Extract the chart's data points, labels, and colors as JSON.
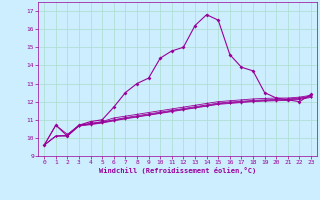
{
  "xlabel": "Windchill (Refroidissement éolien,°C)",
  "bg_color": "#cceeff",
  "grid_color": "#aaddcc",
  "line_color": "#990099",
  "xlim": [
    -0.5,
    23.5
  ],
  "ylim": [
    9,
    17.5
  ],
  "yticks": [
    9,
    10,
    11,
    12,
    13,
    14,
    15,
    16,
    17
  ],
  "xticks": [
    0,
    1,
    2,
    3,
    4,
    5,
    6,
    7,
    8,
    9,
    10,
    11,
    12,
    13,
    14,
    15,
    16,
    17,
    18,
    19,
    20,
    21,
    22,
    23
  ],
  "line1_x": [
    0,
    1,
    2,
    3,
    4,
    5,
    6,
    7,
    8,
    9,
    10,
    11,
    12,
    13,
    14,
    15,
    16,
    17,
    18,
    19,
    20,
    21,
    22,
    23
  ],
  "line1_y": [
    9.6,
    10.7,
    10.1,
    10.7,
    10.9,
    11.0,
    11.7,
    12.5,
    13.0,
    13.3,
    14.4,
    14.8,
    15.0,
    16.2,
    16.8,
    16.5,
    14.6,
    13.9,
    13.7,
    12.5,
    12.2,
    12.1,
    12.0,
    12.4
  ],
  "line2_x": [
    0,
    1,
    2,
    3,
    4,
    5,
    6,
    7,
    8,
    9,
    10,
    11,
    12,
    13,
    14,
    15,
    16,
    17,
    18,
    19,
    20,
    21,
    22,
    23
  ],
  "line2_y": [
    9.6,
    10.7,
    10.2,
    10.7,
    10.8,
    10.9,
    11.1,
    11.2,
    11.3,
    11.4,
    11.5,
    11.6,
    11.7,
    11.8,
    11.9,
    12.0,
    12.05,
    12.1,
    12.15,
    12.18,
    12.2,
    12.2,
    12.25,
    12.35
  ],
  "line3_x": [
    0,
    1,
    2,
    3,
    4,
    5,
    6,
    7,
    8,
    9,
    10,
    11,
    12,
    13,
    14,
    15,
    16,
    17,
    18,
    19,
    20,
    21,
    22,
    23
  ],
  "line3_y": [
    9.6,
    10.1,
    10.15,
    10.7,
    10.78,
    10.88,
    11.0,
    11.12,
    11.22,
    11.32,
    11.42,
    11.52,
    11.62,
    11.72,
    11.82,
    11.92,
    11.98,
    12.02,
    12.07,
    12.1,
    12.12,
    12.15,
    12.2,
    12.3
  ],
  "line4_x": [
    0,
    1,
    2,
    3,
    4,
    5,
    6,
    7,
    8,
    9,
    10,
    11,
    12,
    13,
    14,
    15,
    16,
    17,
    18,
    19,
    20,
    21,
    22,
    23
  ],
  "line4_y": [
    9.6,
    10.1,
    10.12,
    10.68,
    10.76,
    10.85,
    10.97,
    11.08,
    11.18,
    11.28,
    11.38,
    11.48,
    11.58,
    11.68,
    11.78,
    11.88,
    11.94,
    11.98,
    12.03,
    12.07,
    12.08,
    12.1,
    12.17,
    12.27
  ],
  "line5_x": [
    0,
    1,
    2,
    3,
    4,
    5,
    6,
    7,
    8,
    9,
    10,
    11,
    12,
    13,
    14,
    15,
    16,
    17,
    18,
    19,
    20,
    21,
    22,
    23
  ],
  "line5_y": [
    9.6,
    10.1,
    10.1,
    10.65,
    10.73,
    10.82,
    10.94,
    11.05,
    11.15,
    11.25,
    11.35,
    11.45,
    11.55,
    11.65,
    11.75,
    11.85,
    11.9,
    11.95,
    12.0,
    12.03,
    12.05,
    12.07,
    12.13,
    12.23
  ]
}
